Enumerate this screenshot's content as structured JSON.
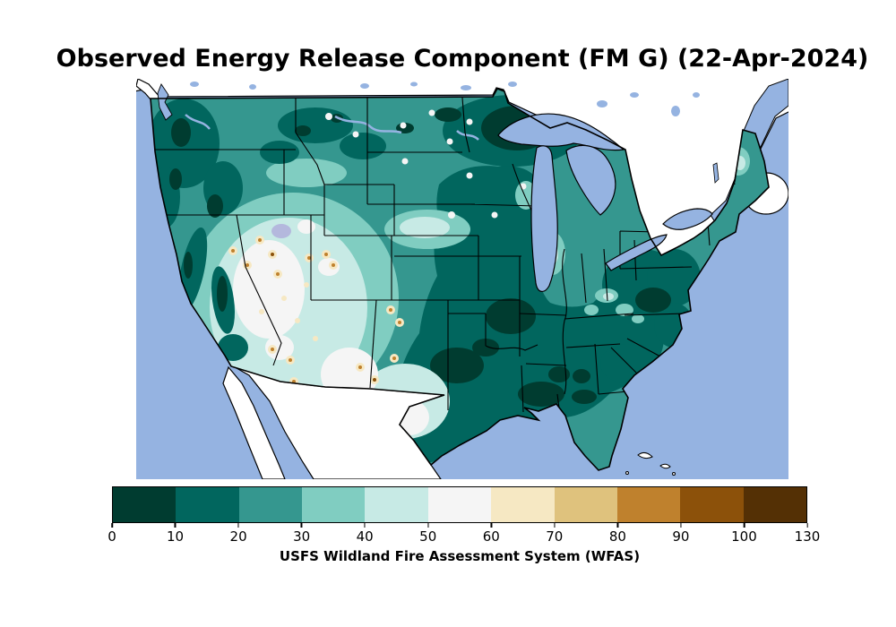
{
  "figure": {
    "title": "Observed Energy Release Component (FM G) (22-Apr-2024)",
    "background_color": "#ffffff"
  },
  "map": {
    "ocean_color": "#95b3e1",
    "outside_land_color": "#ffffff",
    "outline_color": "#000000",
    "great_salt_lake_color": "#b4b8dd",
    "regions": [
      {
        "area": "Minnesota / Northern Plains",
        "erc_range": "0-20"
      },
      {
        "area": "Midwest, South and Appalachians",
        "erc_range": "0-20"
      },
      {
        "area": "Pacific Northwest coast and Rockies",
        "erc_range": "10-30"
      },
      {
        "area": "Florida, Great Lakes states and Northeast",
        "erc_range": "20-40"
      },
      {
        "area": "Great Basin (Nevada / Utah)",
        "erc_range": "40-60"
      },
      {
        "area": "Southwest and west Texas",
        "erc_range": "30-60 with isolated stations 60-100"
      }
    ]
  },
  "colorbar": {
    "label": "USFS Wildland Fire Assessment System (WFAS)",
    "tick_labels": [
      "0",
      "10",
      "20",
      "30",
      "40",
      "50",
      "60",
      "70",
      "80",
      "90",
      "100",
      "130"
    ],
    "segments": [
      {
        "range": "0-10",
        "color": "#003c30"
      },
      {
        "range": "10-20",
        "color": "#01665e"
      },
      {
        "range": "20-30",
        "color": "#35978f"
      },
      {
        "range": "30-40",
        "color": "#80cdc1"
      },
      {
        "range": "40-50",
        "color": "#c7eae5"
      },
      {
        "range": "50-60",
        "color": "#f5f5f5"
      },
      {
        "range": "60-70",
        "color": "#f6e8c3"
      },
      {
        "range": "70-80",
        "color": "#dfc27d"
      },
      {
        "range": "80-90",
        "color": "#bf812d"
      },
      {
        "range": "90-100",
        "color": "#8c510a"
      },
      {
        "range": "100-130",
        "color": "#543005"
      }
    ]
  }
}
